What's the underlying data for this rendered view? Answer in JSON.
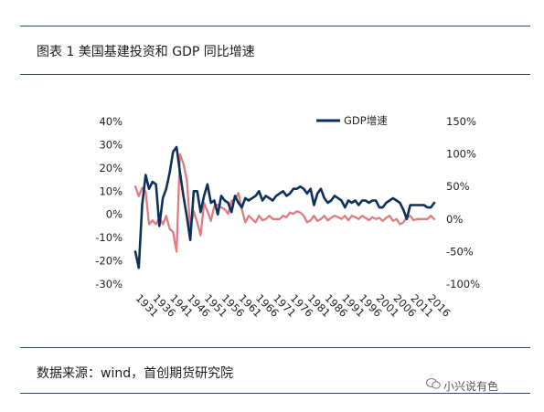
{
  "header": {
    "title": "图表 1  美国基建投资和  GDP  同比增速"
  },
  "footer": {
    "source": "数据来源：wind，首创期货研究院",
    "watermark": "小兴说有色"
  },
  "chart_data": {
    "type": "line",
    "title": "",
    "xlabel": "",
    "ylabel": "",
    "legend": {
      "placement": "top-right",
      "entries": [
        "GDP增速"
      ]
    },
    "left_axis": {
      "ylim": [
        -30,
        40
      ],
      "ticks": [
        "40%",
        "30%",
        "20%",
        "10%",
        "0%",
        "-10%",
        "-20%",
        "-30%"
      ],
      "values": [
        40,
        30,
        20,
        10,
        0,
        -10,
        -20,
        -30
      ]
    },
    "right_axis": {
      "ylim": [
        -100,
        150
      ],
      "ticks": [
        "150%",
        "100%",
        "50%",
        "0%",
        "-50%",
        "-100%"
      ],
      "values": [
        150,
        100,
        50,
        0,
        -50,
        -100
      ]
    },
    "x_tick_labels": [
      "1931",
      "1936",
      "1941",
      "1946",
      "1951",
      "1956",
      "1961",
      "1966",
      "1971",
      "1976",
      "1981",
      "1986",
      "1991",
      "1996",
      "2001",
      "2006",
      "2011",
      "2016"
    ],
    "x_tick_years": [
      1931,
      1936,
      1941,
      1946,
      1951,
      1956,
      1961,
      1966,
      1971,
      1976,
      1981,
      1986,
      1991,
      1996,
      2001,
      2006,
      2011,
      2016
    ],
    "colors": {
      "gdp": "#0d2f5b",
      "infra": "#e07b80"
    },
    "series": [
      {
        "name": "GDP增速",
        "axis": "left",
        "x": [
          1930,
          1931,
          1932,
          1933,
          1934,
          1935,
          1936,
          1937,
          1938,
          1939,
          1940,
          1941,
          1942,
          1943,
          1944,
          1945,
          1946,
          1947,
          1948,
          1949,
          1950,
          1951,
          1952,
          1953,
          1954,
          1955,
          1956,
          1957,
          1958,
          1959,
          1960,
          1961,
          1962,
          1963,
          1964,
          1965,
          1966,
          1967,
          1968,
          1969,
          1970,
          1971,
          1972,
          1973,
          1974,
          1975,
          1976,
          1977,
          1978,
          1979,
          1980,
          1981,
          1982,
          1983,
          1984,
          1985,
          1986,
          1987,
          1988,
          1989,
          1990,
          1991,
          1992,
          1993,
          1994,
          1995,
          1996,
          1997,
          1998,
          1999,
          2000,
          2001,
          2002,
          2003,
          2004,
          2005,
          2006,
          2007,
          2008,
          2009,
          2010,
          2011,
          2012,
          2013,
          2014,
          2015,
          2016,
          2017
        ],
        "y": [
          -16,
          -23,
          4,
          17,
          11,
          14,
          13,
          -5,
          7,
          11,
          18,
          27,
          29,
          18,
          8,
          -1,
          -11,
          10,
          10,
          1,
          8,
          13,
          5,
          6,
          0,
          8,
          6,
          5,
          1,
          8,
          5,
          3,
          7,
          6,
          7,
          8,
          10,
          6,
          8,
          7,
          6,
          8,
          9,
          10,
          8,
          9,
          11,
          11,
          12,
          11,
          9,
          11,
          4,
          9,
          11,
          7,
          5,
          6,
          8,
          7,
          6,
          3,
          6,
          5,
          6,
          4,
          6,
          6,
          5,
          6,
          6,
          3,
          3,
          5,
          6,
          7,
          6,
          5,
          2,
          -2,
          4,
          4,
          4,
          4,
          4,
          3,
          3,
          5
        ]
      },
      {
        "name": "",
        "axis": "right",
        "x": [
          1930,
          1931,
          1932,
          1933,
          1934,
          1935,
          1936,
          1937,
          1938,
          1939,
          1940,
          1941,
          1942,
          1943,
          1944,
          1945,
          1946,
          1947,
          1948,
          1949,
          1950,
          1951,
          1952,
          1953,
          1954,
          1955,
          1956,
          1957,
          1958,
          1959,
          1960,
          1961,
          1962,
          1963,
          1964,
          1965,
          1966,
          1967,
          1968,
          1969,
          1970,
          1971,
          1972,
          1973,
          1974,
          1975,
          1976,
          1977,
          1978,
          1979,
          1980,
          1981,
          1982,
          1983,
          1984,
          1985,
          1986,
          1987,
          1988,
          1989,
          1990,
          1991,
          1992,
          1993,
          1994,
          1995,
          1996,
          1997,
          1998,
          1999,
          2000,
          2001,
          2002,
          2003,
          2004,
          2005,
          2006,
          2007,
          2008,
          2009,
          2010,
          2011,
          2012,
          2013,
          2014,
          2015,
          2016,
          2017
        ],
        "y": [
          50,
          35,
          48,
          42,
          -8,
          -2,
          -8,
          2,
          -8,
          5,
          -15,
          -20,
          -50,
          100,
          85,
          60,
          -15,
          12,
          -5,
          -25,
          25,
          12,
          -3,
          20,
          22,
          18,
          15,
          8,
          28,
          30,
          40,
          15,
          -5,
          5,
          0,
          -5,
          5,
          -2,
          0,
          5,
          0,
          0,
          0,
          5,
          3,
          10,
          8,
          12,
          10,
          5,
          -5,
          -2,
          5,
          -3,
          0,
          5,
          -2,
          2,
          5,
          3,
          0,
          5,
          -2,
          5,
          3,
          0,
          5,
          2,
          -2,
          3,
          0,
          2,
          -3,
          2,
          5,
          -3,
          0,
          -8,
          -5,
          2,
          5,
          -2,
          0,
          0,
          0,
          0,
          5,
          0
        ]
      }
    ]
  }
}
